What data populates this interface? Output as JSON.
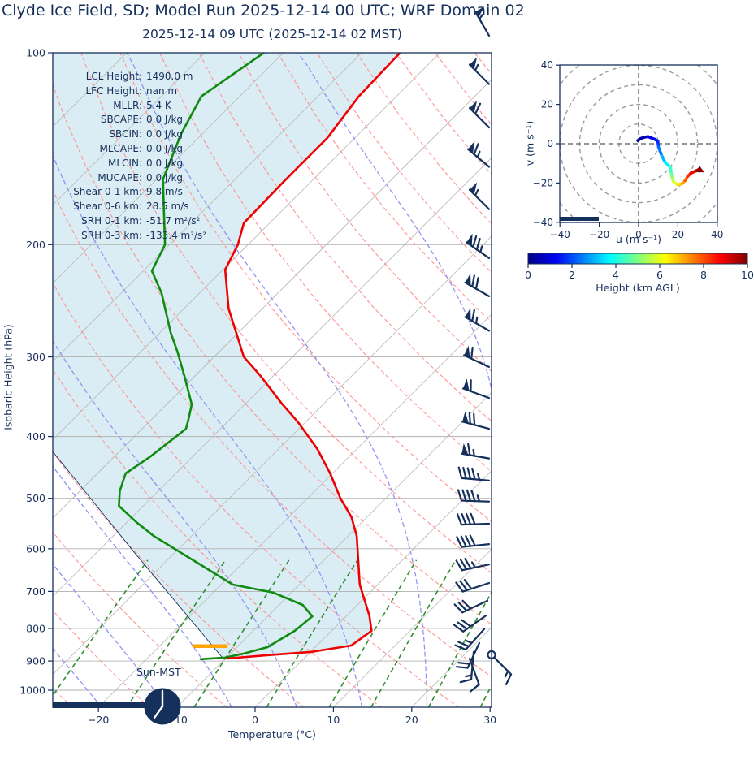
{
  "title": "Clyde Ice Field, SD; Model Run 2025-12-14 00 UTC; WRF Domain 02",
  "subtitle": "2025-12-14 09 UTC  (2025-12-14 02 MST)",
  "skewt": {
    "xlabel": "Temperature (°C)",
    "ylabel": "Isobaric Height (hPa)",
    "x_ticks": [
      -20,
      -10,
      0,
      10,
      20,
      30
    ],
    "y_ticks": [
      100,
      200,
      300,
      400,
      500,
      600,
      700,
      800,
      900,
      1000
    ],
    "sun_label": "Sun-MST",
    "stats": [
      {
        "label": "LCL Height:",
        "value": "1490.0 m"
      },
      {
        "label": "LFC Height:",
        "value": "nan m"
      },
      {
        "label": "MLLR:",
        "value": "5.4 K"
      },
      {
        "label": "SBCAPE:",
        "value": "0.0 J/kg"
      },
      {
        "label": "SBCIN:",
        "value": "0.0 J/kg"
      },
      {
        "label": "MLCAPE:",
        "value": "0.0 J/kg"
      },
      {
        "label": "MLCIN:",
        "value": "0.0 J/kg"
      },
      {
        "label": "MUCAPE:",
        "value": "0.0 J/kg"
      },
      {
        "label": "Shear 0-1 km:",
        "value": "9.8 m/s"
      },
      {
        "label": "Shear 0-6 km:",
        "value": "28.5 m/s"
      },
      {
        "label": "SRH 0-1 km:",
        "value": "-51.7 m²/s²"
      },
      {
        "label": "SRH 0-3 km:",
        "value": "-133.4 m²/s²"
      }
    ]
  },
  "hodograph": {
    "xlabel": "u (m s⁻¹)",
    "ylabel": "v (m s⁻¹)",
    "ticks": [
      -40,
      -20,
      0,
      20,
      40
    ],
    "ring_radii_ms": [
      10,
      20,
      30,
      40,
      50
    ]
  },
  "colorbar": {
    "label": "Height (km AGL)",
    "ticks": [
      0,
      2,
      4,
      6,
      8,
      10
    ],
    "min": 0,
    "max": 10
  },
  "colors": {
    "navy": "#16305c",
    "temperature": "#ee0000",
    "dewpoint": "#0f8b0f",
    "dry_adiabat": "#ff9393",
    "moist_adiabat": "#9393f3",
    "mixing_ratio": "#2f8f2f",
    "isotherm": "#b5b5b5",
    "gridline": "#b0b0b0",
    "cin_shade": "#add8e6",
    "lcl_marker": "#ffa500",
    "hodo_grid": "#999999"
  },
  "chart_data": {
    "type": "skewt-sounding",
    "pressure_axis_hpa": [
      100,
      1065
    ],
    "temperature_axis_c": [
      -25,
      30
    ],
    "temperature_profile": [
      [
        100,
        -65.1
      ],
      [
        117,
        -64.8
      ],
      [
        136,
        -63.5
      ],
      [
        159,
        -63.5
      ],
      [
        185,
        -63.3
      ],
      [
        200,
        -61.3
      ],
      [
        219,
        -59.7
      ],
      [
        252,
        -54.3
      ],
      [
        300,
        -46.2
      ],
      [
        321,
        -41.7
      ],
      [
        355,
        -35.4
      ],
      [
        380,
        -30.9
      ],
      [
        418,
        -25.1
      ],
      [
        456,
        -20.4
      ],
      [
        500,
        -15.8
      ],
      [
        535,
        -12.0
      ],
      [
        573,
        -8.9
      ],
      [
        683,
        -2.3
      ],
      [
        764,
        2.9
      ],
      [
        807,
        5.1
      ],
      [
        851,
        4.4
      ],
      [
        871,
        0.1
      ],
      [
        881,
        -5.0
      ],
      [
        892,
        -9.8
      ]
    ],
    "dewpoint_profile": [
      [
        100,
        -82.5
      ],
      [
        117,
        -84.9
      ],
      [
        134,
        -82.7
      ],
      [
        158,
        -79.2
      ],
      [
        200,
        -70.6
      ],
      [
        220,
        -68.9
      ],
      [
        238,
        -64.9
      ],
      [
        275,
        -58.6
      ],
      [
        294,
        -55.4
      ],
      [
        321,
        -51.4
      ],
      [
        356,
        -46.8
      ],
      [
        377,
        -45.2
      ],
      [
        389,
        -44.4
      ],
      [
        430,
        -45.4
      ],
      [
        457,
        -46.4
      ],
      [
        487,
        -44.9
      ],
      [
        514,
        -43.1
      ],
      [
        545,
        -38.8
      ],
      [
        573,
        -34.8
      ],
      [
        683,
        -18.5
      ],
      [
        703,
        -12.3
      ],
      [
        735,
        -7.0
      ],
      [
        766,
        -4.3
      ],
      [
        807,
        -4.7
      ],
      [
        856,
        -6.1
      ],
      [
        876,
        -8.3
      ],
      [
        889,
        -10.2
      ],
      [
        894,
        -13.1
      ]
    ],
    "parcel_profile": [
      [
        892,
        -10.3
      ],
      [
        607,
        -35.3
      ],
      [
        423,
        -58.4
      ]
    ],
    "lcl_marker": {
      "p": 853,
      "t_from": -15.8,
      "t_to": -11.3
    },
    "wind_barbs": [
      [
        94,
        602,
        330,
        1,
        0,
        1,
        0
      ],
      [
        112,
        602,
        315,
        1,
        0,
        1,
        0
      ],
      [
        131,
        602,
        315,
        1,
        1,
        0,
        0
      ],
      [
        151,
        602,
        310,
        1,
        1,
        1,
        0
      ],
      [
        176,
        602,
        315,
        1,
        0,
        1,
        0
      ],
      [
        210,
        602,
        305,
        1,
        2,
        1,
        0
      ],
      [
        241,
        602,
        300,
        1,
        2,
        0,
        0
      ],
      [
        273,
        602,
        300,
        1,
        1,
        1,
        0
      ],
      [
        311,
        602,
        295,
        1,
        1,
        0,
        0
      ],
      [
        348,
        602,
        290,
        1,
        1,
        0,
        0
      ],
      [
        389,
        602,
        285,
        1,
        2,
        0,
        0
      ],
      [
        433,
        602,
        280,
        1,
        1,
        1,
        0
      ],
      [
        469,
        602,
        275,
        0,
        4,
        1,
        0
      ],
      [
        506,
        602,
        272,
        0,
        4,
        1,
        0
      ],
      [
        548,
        602,
        268,
        0,
        4,
        0,
        0
      ],
      [
        590,
        602,
        264,
        0,
        4,
        0,
        0
      ],
      [
        635,
        602,
        258,
        0,
        3,
        1,
        0
      ],
      [
        679,
        602,
        252,
        0,
        3,
        0,
        0
      ],
      [
        724,
        600,
        245,
        0,
        3,
        0,
        0
      ],
      [
        764,
        598,
        235,
        0,
        3,
        0,
        0
      ],
      [
        802,
        596,
        222,
        0,
        2,
        1,
        0
      ],
      [
        843,
        590,
        205,
        0,
        2,
        0,
        0
      ],
      [
        871,
        583,
        185,
        0,
        1,
        1,
        0
      ],
      [
        880,
        605,
        135,
        0,
        1,
        1,
        1
      ],
      [
        892,
        578,
        160,
        0,
        1,
        0,
        0
      ]
    ],
    "hodograph_trace_uvh": [
      [
        -0.4,
        1.6,
        0
      ],
      [
        1,
        2.6,
        0.2
      ],
      [
        2.9,
        3.3,
        0.45
      ],
      [
        4.8,
        3.6,
        0.7
      ],
      [
        6.5,
        2.9,
        0.95
      ],
      [
        8.4,
        2.2,
        1.2
      ],
      [
        9.8,
        1.2,
        1.5
      ],
      [
        10,
        -0.5,
        1.8
      ],
      [
        10.2,
        -2,
        2.1
      ],
      [
        11.8,
        -6.1,
        2.7
      ],
      [
        13.5,
        -9.4,
        3.3
      ],
      [
        16.3,
        -12.2,
        4
      ],
      [
        16.7,
        -15.5,
        4.7
      ],
      [
        17.1,
        -17.6,
        5.2
      ],
      [
        18,
        -19.6,
        5.7
      ],
      [
        20,
        -20.8,
        6.3
      ],
      [
        22,
        -20.4,
        6.9
      ],
      [
        23.7,
        -18.8,
        7.5
      ],
      [
        24.9,
        -16.7,
        8.1
      ],
      [
        26.5,
        -15.1,
        8.6
      ],
      [
        28.9,
        -13.9,
        9.2
      ],
      [
        30.6,
        -13.1,
        9.7
      ],
      [
        31.2,
        -13.4,
        10
      ]
    ]
  }
}
